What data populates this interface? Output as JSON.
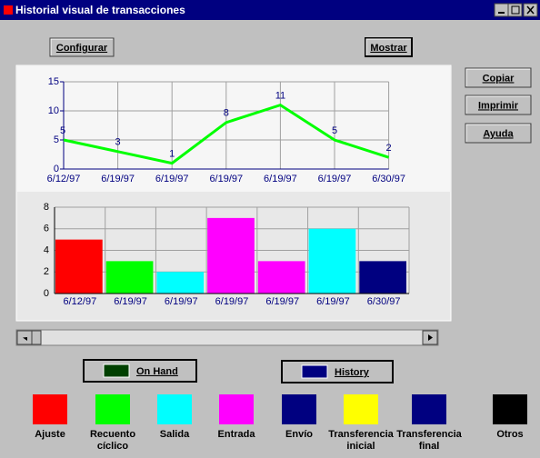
{
  "window": {
    "title": "Historial visual de transacciones"
  },
  "buttons": {
    "configurar": "Configurar",
    "mostrar": "Mostrar",
    "copiar": "Copiar",
    "imprimir": "Imprimir",
    "ayuda": "Ayuda",
    "on_hand": "On Hand",
    "history": "History"
  },
  "line_chart": {
    "type": "line",
    "categories": [
      "6/12/97",
      "6/19/97",
      "6/19/97",
      "6/19/97",
      "6/19/97",
      "6/19/97",
      "6/30/97"
    ],
    "values": [
      5,
      3,
      1,
      8,
      11,
      5,
      2
    ],
    "color": "#00ff00",
    "ylim": [
      0,
      15
    ],
    "yticks": [
      0,
      5,
      10,
      15
    ],
    "grid": true
  },
  "bar_chart": {
    "type": "bar",
    "categories": [
      "6/12/97",
      "6/19/97",
      "6/19/97",
      "6/19/97",
      "6/19/97",
      "6/19/97",
      "6/30/97"
    ],
    "values": [
      5,
      3,
      2,
      7,
      3,
      6,
      3
    ],
    "colors": [
      "#ff0000",
      "#00ff00",
      "#00ffff",
      "#ff00ff",
      "#ff00ff",
      "#00ffff",
      "#000080"
    ],
    "ylim": [
      0,
      8
    ],
    "yticks": [
      0,
      2,
      4,
      6,
      8
    ],
    "grid": true
  },
  "legend": [
    {
      "lines": [
        "Ajuste"
      ],
      "color": "#ff0000"
    },
    {
      "lines": [
        "Recuento",
        "cíclico"
      ],
      "color": "#00ff00"
    },
    {
      "lines": [
        "Salida"
      ],
      "color": "#00ffff"
    },
    {
      "lines": [
        "Entrada"
      ],
      "color": "#ff00ff"
    },
    {
      "lines": [
        "Envío"
      ],
      "color": "#000080"
    },
    {
      "lines": [
        "Transferencia",
        "inicial"
      ],
      "color": "#ffff00"
    },
    {
      "lines": [
        "Transferencia",
        "final"
      ],
      "color": "#000080"
    },
    {
      "lines": [
        "Otros"
      ],
      "color": "#000000"
    }
  ]
}
